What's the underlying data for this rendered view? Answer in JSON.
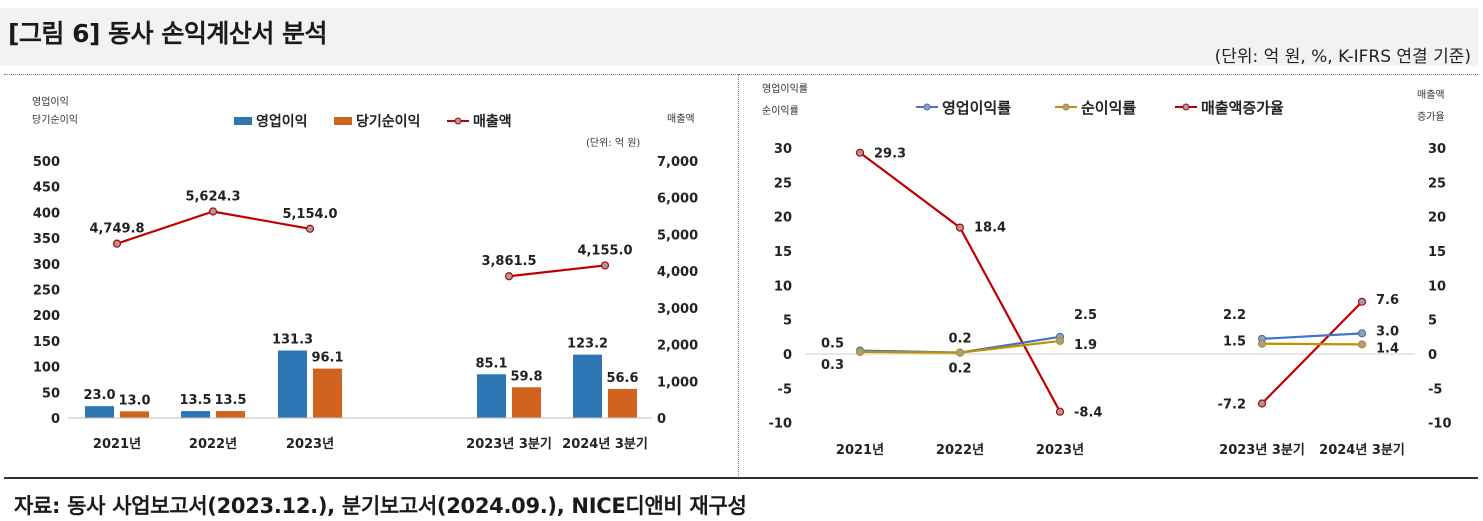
{
  "header": {
    "title": "[그림 6] 동사 손익계산서 분석",
    "unit": "(단위: 억 원, %, K-IFRS 연결 기준)"
  },
  "source": "자료: 동사 사업보고서(2023.12.), 분기보고서(2024.09.), NICE디앤비 재구성",
  "colors": {
    "op_bar": "#2e75b6",
    "net_bar": "#d0641e",
    "sales_line": "#c00000",
    "op_margin_line": "#4472c4",
    "net_margin_line": "#bf9000",
    "marker_fill": "#9aa0a6"
  },
  "chart_data": [
    {
      "type": "bar",
      "title": "",
      "categories": [
        "2021년",
        "2022년",
        "2023년",
        "2023년 3분기",
        "2024년 3분기"
      ],
      "left_axis_title": [
        "영업이익",
        "당기순이익"
      ],
      "right_axis_title": "매출액",
      "unit_note": "(단위: 억 원)",
      "ylim": [
        0,
        500
      ],
      "left_ticks": [
        "500",
        "450",
        "400",
        "350",
        "300",
        "250",
        "200",
        "150",
        "100",
        "50",
        "0"
      ],
      "y2lim": [
        0,
        7000
      ],
      "right_ticks": [
        "7,000",
        "6,000",
        "5,000",
        "4,000",
        "3,000",
        "2,000",
        "1,000",
        "0"
      ],
      "legend": [
        "영업이익",
        "당기순이익",
        "매출액"
      ],
      "series": [
        {
          "name": "영업이익",
          "kind": "bar",
          "axis": "left",
          "values": [
            23.0,
            13.5,
            131.3,
            85.1,
            123.2
          ],
          "labels": [
            "23.0",
            "13.5",
            "131.3",
            "85.1",
            "123.2"
          ]
        },
        {
          "name": "당기순이익",
          "kind": "bar",
          "axis": "left",
          "values": [
            13.0,
            13.5,
            96.1,
            59.8,
            56.6
          ],
          "labels": [
            "13.0",
            "13.5",
            "96.1",
            "59.8",
            "56.6"
          ]
        },
        {
          "name": "매출액",
          "kind": "line",
          "axis": "right",
          "values": [
            4749.8,
            5624.3,
            5154.0,
            3861.5,
            4155.0
          ],
          "labels": [
            "4,749.8",
            "5,624.3",
            "5,154.0",
            "3,861.5",
            "4,155.0"
          ]
        }
      ]
    },
    {
      "type": "line",
      "title": "",
      "categories": [
        "2021년",
        "2022년",
        "2023년",
        "2023년 3분기",
        "2024년 3분기"
      ],
      "left_axis_title": [
        "영업이익률",
        "순이익률"
      ],
      "right_axis_title": [
        "매출액",
        "증가율"
      ],
      "ylim": [
        -10,
        30
      ],
      "ticks": [
        "30",
        "25",
        "20",
        "15",
        "10",
        "5",
        "0",
        "-5",
        "-10"
      ],
      "legend": [
        "영업이익률",
        "순이익률",
        "매출액증가율"
      ],
      "series": [
        {
          "name": "영업이익률",
          "values": [
            0.5,
            0.2,
            2.5,
            2.2,
            3.0
          ],
          "labels": [
            "0.5",
            "0.2",
            "2.5",
            "2.2",
            "3.0"
          ]
        },
        {
          "name": "순이익률",
          "values": [
            0.3,
            0.2,
            1.9,
            1.5,
            1.4
          ],
          "labels": [
            "0.3",
            "0.2",
            "1.9",
            "1.5",
            "1.4"
          ]
        },
        {
          "name": "매출액증가율",
          "values": [
            29.3,
            18.4,
            -8.4,
            -7.2,
            7.6
          ],
          "labels": [
            "29.3",
            "18.4",
            "-8.4",
            "-7.2",
            "7.6"
          ]
        }
      ]
    }
  ]
}
